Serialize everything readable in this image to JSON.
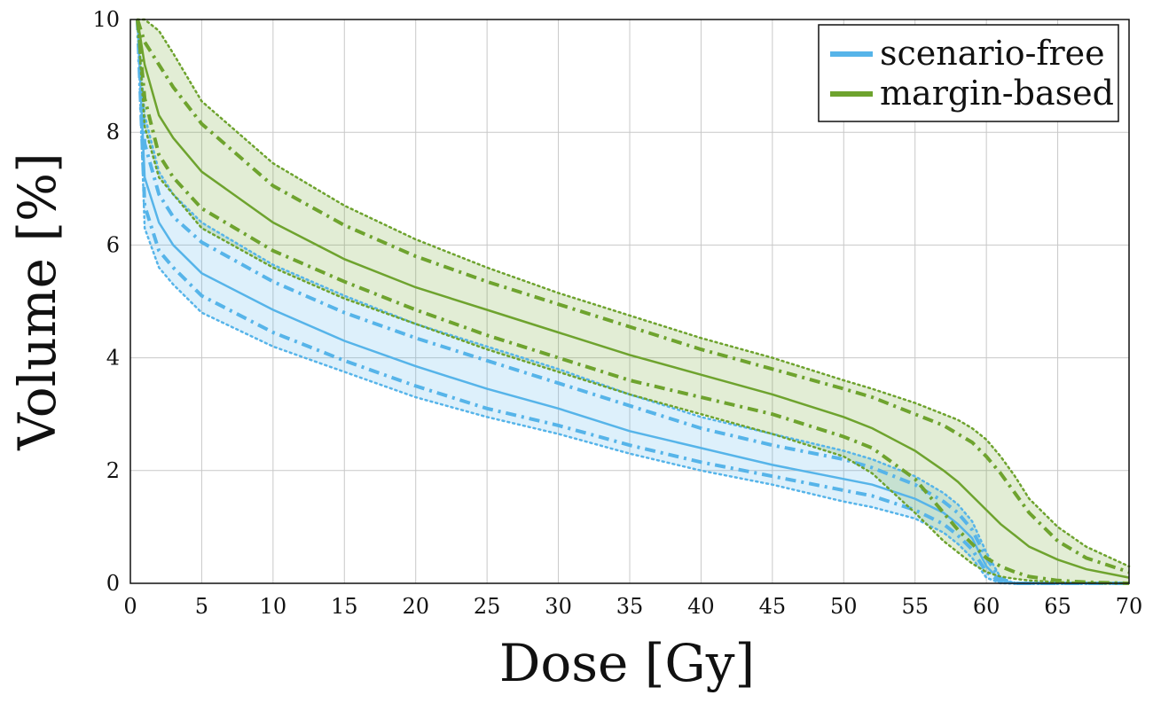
{
  "chart_data": {
    "type": "line",
    "xlabel": "Dose [Gy]",
    "ylabel": "Volume [%]",
    "xlim": [
      0,
      70
    ],
    "ylim": [
      0,
      10
    ],
    "xticks": [
      "0",
      "5",
      "10",
      "15",
      "20",
      "25",
      "30",
      "35",
      "40",
      "45",
      "50",
      "55",
      "60",
      "65",
      "70"
    ],
    "yticks": [
      "0",
      "2",
      "4",
      "6",
      "8",
      "10"
    ],
    "grid": true,
    "legend": {
      "placement": "top-right",
      "entries": [
        "scenario-free",
        "margin-based"
      ]
    },
    "x": [
      0.5,
      1,
      2,
      3,
      5,
      10,
      15,
      20,
      25,
      30,
      35,
      40,
      45,
      50,
      52,
      55,
      57,
      58,
      59,
      60,
      61,
      62,
      63,
      65,
      67,
      70
    ],
    "series": [
      {
        "name": "scenario-free",
        "color": "#56b4e9",
        "mean": [
          10,
          7.2,
          6.4,
          6.0,
          5.5,
          4.85,
          4.3,
          3.85,
          3.45,
          3.1,
          2.7,
          2.4,
          2.1,
          1.85,
          1.75,
          1.5,
          1.25,
          1.05,
          0.8,
          0.3,
          0.05,
          0.0,
          0.0,
          0.0,
          0.0,
          0.0
        ],
        "inner_upper": [
          10,
          7.8,
          6.9,
          6.5,
          6.05,
          5.35,
          4.8,
          4.35,
          3.95,
          3.55,
          3.15,
          2.75,
          2.45,
          2.2,
          2.05,
          1.75,
          1.45,
          1.25,
          0.95,
          0.45,
          0.08,
          0.0,
          0.0,
          0.0,
          0.0,
          0.0
        ],
        "inner_lower": [
          10,
          6.7,
          5.9,
          5.6,
          5.1,
          4.45,
          3.95,
          3.5,
          3.1,
          2.8,
          2.45,
          2.15,
          1.9,
          1.65,
          1.55,
          1.3,
          1.05,
          0.85,
          0.6,
          0.2,
          0.02,
          0.0,
          0.0,
          0.0,
          0.0,
          0.0
        ],
        "outer_upper": [
          10,
          8.3,
          7.3,
          6.9,
          6.4,
          5.65,
          5.1,
          4.6,
          4.2,
          3.8,
          3.35,
          2.95,
          2.65,
          2.35,
          2.2,
          1.9,
          1.6,
          1.4,
          1.1,
          0.55,
          0.1,
          0.0,
          0.0,
          0.0,
          0.0,
          0.0
        ],
        "outer_lower": [
          10,
          6.3,
          5.6,
          5.3,
          4.8,
          4.2,
          3.75,
          3.3,
          2.95,
          2.65,
          2.3,
          2.0,
          1.75,
          1.45,
          1.35,
          1.15,
          0.9,
          0.7,
          0.45,
          0.1,
          0.0,
          0.0,
          0.0,
          0.0,
          0.0,
          0.0
        ]
      },
      {
        "name": "margin-based",
        "color": "#6ea32e",
        "mean": [
          10,
          9.2,
          8.3,
          7.9,
          7.3,
          6.4,
          5.75,
          5.25,
          4.85,
          4.45,
          4.05,
          3.7,
          3.35,
          2.95,
          2.75,
          2.35,
          2.0,
          1.8,
          1.55,
          1.3,
          1.05,
          0.85,
          0.65,
          0.42,
          0.25,
          0.1
        ],
        "inner_upper": [
          10,
          9.6,
          9.2,
          8.8,
          8.15,
          7.05,
          6.35,
          5.8,
          5.35,
          4.95,
          4.55,
          4.15,
          3.8,
          3.45,
          3.3,
          3.0,
          2.8,
          2.65,
          2.5,
          2.25,
          1.95,
          1.6,
          1.25,
          0.75,
          0.45,
          0.2
        ],
        "inner_lower": [
          10,
          8.6,
          7.6,
          7.2,
          6.65,
          5.9,
          5.35,
          4.85,
          4.4,
          4.0,
          3.6,
          3.3,
          3.0,
          2.6,
          2.4,
          1.85,
          1.25,
          0.95,
          0.7,
          0.45,
          0.3,
          0.2,
          0.12,
          0.05,
          0.02,
          0.0
        ],
        "outer_upper": [
          10,
          10,
          9.8,
          9.4,
          8.55,
          7.45,
          6.7,
          6.1,
          5.6,
          5.15,
          4.75,
          4.35,
          4.0,
          3.6,
          3.45,
          3.2,
          3.0,
          2.9,
          2.75,
          2.55,
          2.25,
          1.9,
          1.5,
          1.0,
          0.65,
          0.3
        ],
        "outer_lower": [
          10,
          8.1,
          7.2,
          6.9,
          6.3,
          5.6,
          5.05,
          4.6,
          4.15,
          3.75,
          3.35,
          3.0,
          2.65,
          2.25,
          1.95,
          1.25,
          0.75,
          0.55,
          0.35,
          0.2,
          0.12,
          0.08,
          0.05,
          0.02,
          0.01,
          0.0
        ]
      }
    ]
  }
}
